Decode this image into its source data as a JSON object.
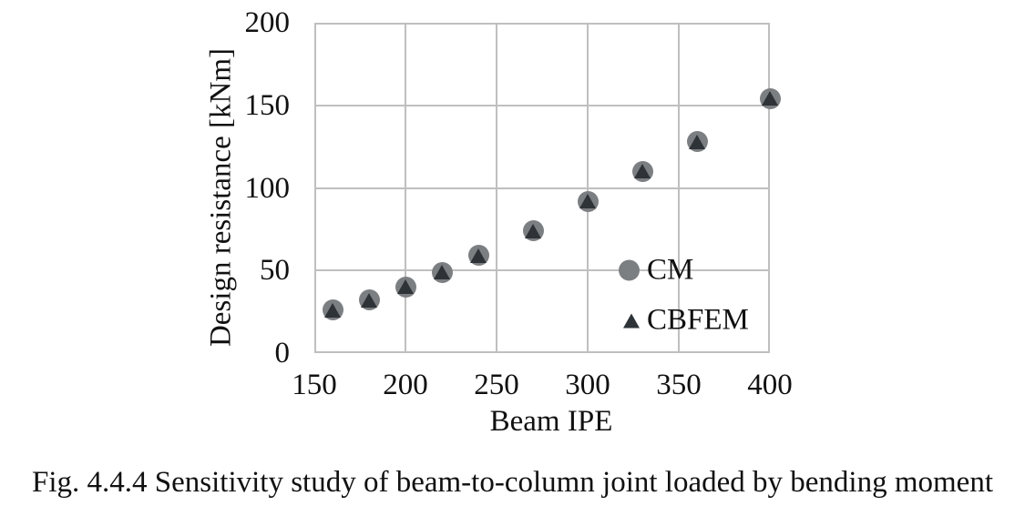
{
  "caption": {
    "text": "Fig. 4.4.4 Sensitivity study of beam-to-column joint loaded by bending moment"
  },
  "colors": {
    "grid": "#bfbfbf",
    "text": "#111111",
    "background": "#ffffff",
    "cm_marker": "#7c7f82",
    "cbfem_marker": "#2e3338"
  },
  "chart_data": {
    "type": "scatter",
    "title": "",
    "xlabel": "Beam IPE",
    "ylabel": "Design resistance [kNm]",
    "xlim": [
      150,
      400
    ],
    "ylim": [
      0,
      200
    ],
    "xticks": [
      150,
      200,
      250,
      300,
      350,
      400
    ],
    "yticks": [
      0,
      50,
      100,
      150,
      200
    ],
    "grid": true,
    "legend_position": "inside-right",
    "x": [
      160,
      180,
      200,
      220,
      240,
      270,
      300,
      330,
      360,
      400
    ],
    "series": [
      {
        "name": "CM",
        "marker": "circle",
        "color": "#7c7f82",
        "values": [
          26,
          32,
          40,
          49,
          59,
          74,
          92,
          110,
          128,
          154
        ]
      },
      {
        "name": "CBFEM",
        "marker": "triangle",
        "color": "#2e3338",
        "values": [
          26,
          32,
          40,
          49,
          59,
          74,
          92,
          110,
          128,
          154
        ]
      }
    ]
  }
}
